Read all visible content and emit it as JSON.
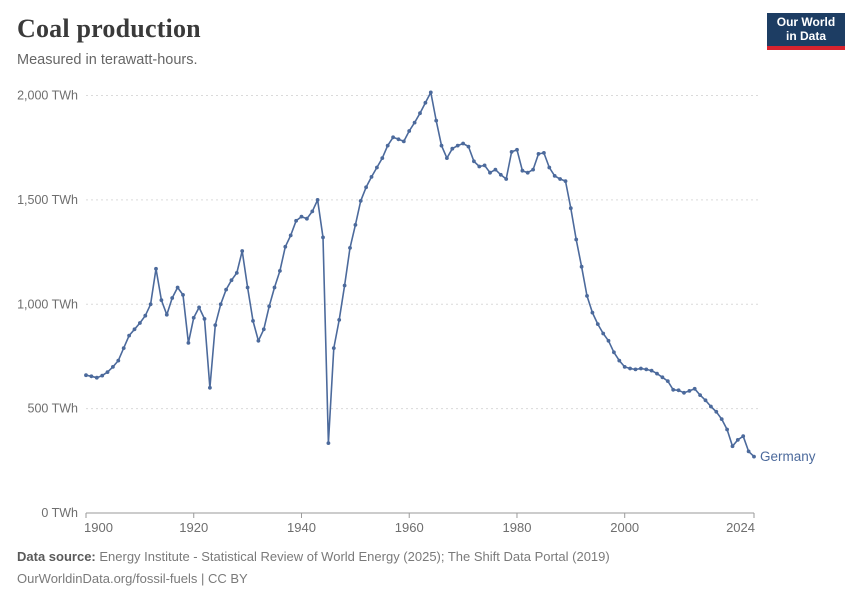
{
  "header": {
    "title": "Coal production",
    "subtitle": "Measured in terawatt-hours."
  },
  "logo": {
    "line1": "Our World",
    "line2": "in Data",
    "bg_color": "#1d3d63",
    "bar_color": "#d8232e"
  },
  "chart_data": {
    "type": "line",
    "title": "Coal production",
    "ylabel": "",
    "xlabel": "",
    "unit": "TWh",
    "xlim": [
      1900,
      2024
    ],
    "ylim": [
      0,
      2000
    ],
    "grid": "horizontal-dashed",
    "legend_position": "end-of-line-label",
    "x_ticks": [
      1900,
      1920,
      1940,
      1960,
      1980,
      2000,
      2024
    ],
    "y_ticks": [
      {
        "value": 0,
        "label": "0 TWh"
      },
      {
        "value": 500,
        "label": "500 TWh"
      },
      {
        "value": 1000,
        "label": "1,000 TWh"
      },
      {
        "value": 1500,
        "label": "1,500 TWh"
      },
      {
        "value": 2000,
        "label": "2,000 TWh"
      }
    ],
    "series": [
      {
        "name": "Germany",
        "color": "#4c6a9c",
        "start_year": 1900,
        "end_year": 2024,
        "values": [
          660,
          655,
          648,
          658,
          675,
          700,
          730,
          790,
          850,
          880,
          910,
          945,
          1000,
          1170,
          1020,
          950,
          1030,
          1080,
          1045,
          815,
          935,
          985,
          930,
          600,
          900,
          1000,
          1070,
          1115,
          1150,
          1255,
          1080,
          920,
          825,
          880,
          990,
          1080,
          1160,
          1275,
          1330,
          1400,
          1420,
          1410,
          1445,
          1500,
          1320,
          335,
          790,
          925,
          1090,
          1270,
          1380,
          1495,
          1560,
          1610,
          1655,
          1700,
          1760,
          1800,
          1790,
          1780,
          1830,
          1870,
          1915,
          1965,
          2015,
          1880,
          1760,
          1700,
          1745,
          1760,
          1770,
          1755,
          1685,
          1660,
          1665,
          1630,
          1645,
          1620,
          1600,
          1730,
          1740,
          1640,
          1630,
          1645,
          1720,
          1725,
          1655,
          1615,
          1600,
          1590,
          1460,
          1310,
          1180,
          1040,
          960,
          905,
          860,
          825,
          770,
          730,
          700,
          692,
          688,
          692,
          688,
          682,
          668,
          650,
          632,
          590,
          588,
          576,
          585,
          595,
          565,
          540,
          510,
          485,
          450,
          400,
          320,
          350,
          368,
          295,
          270
        ]
      }
    ],
    "colors": {
      "line": "#4c6a9c",
      "gridline": "#dadada",
      "axis": "#9a9a9a",
      "tick_label": "#6e6e6e"
    }
  },
  "footer": {
    "source_label": "Data source:",
    "source_text": " Energy Institute - Statistical Review of World Energy (2025); The Shift Data Portal (2019)",
    "note_text": "OurWorldinData.org/fossil-fuels | CC BY"
  }
}
